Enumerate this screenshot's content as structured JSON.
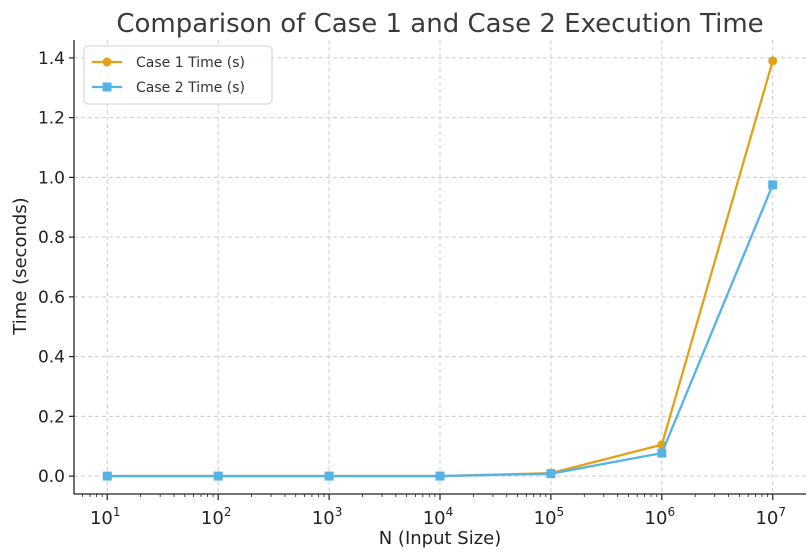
{
  "chart_data": {
    "type": "line",
    "title": "Comparison of Case 1 and Case 2 Execution Time",
    "xlabel": "N (Input Size)",
    "ylabel": "Time (seconds)",
    "x_scale": "log",
    "x": [
      10,
      100,
      1000,
      10000,
      100000,
      1000000,
      10000000
    ],
    "x_tick_labels": [
      {
        "base": "10",
        "exp": "1"
      },
      {
        "base": "10",
        "exp": "2"
      },
      {
        "base": "10",
        "exp": "3"
      },
      {
        "base": "10",
        "exp": "4"
      },
      {
        "base": "10",
        "exp": "5"
      },
      {
        "base": "10",
        "exp": "6"
      },
      {
        "base": "10",
        "exp": "7"
      }
    ],
    "y_ticks": [
      "0.0",
      "0.2",
      "0.4",
      "0.6",
      "0.8",
      "1.0",
      "1.2",
      "1.4"
    ],
    "ylim": [
      -0.06,
      1.46
    ],
    "grid": true,
    "legend_position": "top-left",
    "series": [
      {
        "name": "Case 1 Time (s)",
        "color": "#E3A119",
        "marker": "circle",
        "values": [
          0.0,
          0.0,
          0.0,
          0.0,
          0.01,
          0.105,
          1.39
        ]
      },
      {
        "name": "Case 2 Time (s)",
        "color": "#56B3E6",
        "marker": "square",
        "values": [
          0.0,
          0.0,
          0.0,
          0.0,
          0.008,
          0.077,
          0.975
        ]
      }
    ]
  }
}
